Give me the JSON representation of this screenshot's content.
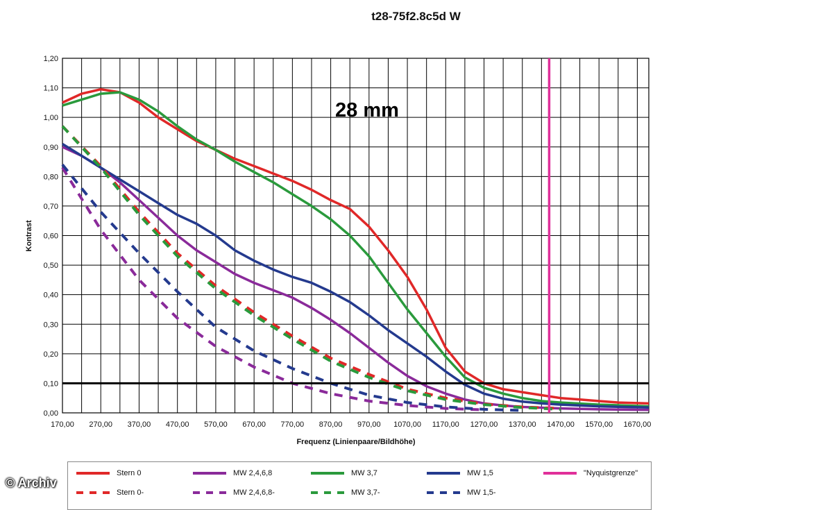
{
  "chart_data": {
    "type": "line",
    "title": "t28-75f2.8c5d W",
    "xlabel": "Frequenz (Linienpaare/Bildhöhe)",
    "ylabel": "Kontrast",
    "xlim": [
      170,
      1700
    ],
    "ylim": [
      0,
      1.2
    ],
    "xticks": [
      "170,00",
      "270,00",
      "370,00",
      "470,00",
      "570,00",
      "670,00",
      "770,00",
      "870,00",
      "970,00",
      "1070,00",
      "1170,00",
      "1270,00",
      "1370,00",
      "1470,00",
      "1570,00",
      "1670,00"
    ],
    "yticks": [
      "0,00",
      "0,10",
      "0,20",
      "0,30",
      "0,40",
      "0,50",
      "0,60",
      "0,70",
      "0,80",
      "0,90",
      "1,00",
      "1,10",
      "1,20"
    ],
    "grid": true,
    "legend_position": "bottom",
    "annotation": "28 mm",
    "reference_line": {
      "y": 0.1,
      "color": "#000000"
    },
    "nyquist": {
      "x": 1440,
      "color": "#e0309a"
    },
    "series": [
      {
        "name": "Stern 0",
        "color": "#e02828",
        "dashed": false,
        "points": [
          [
            170,
            1.05
          ],
          [
            220,
            1.08
          ],
          [
            270,
            1.095
          ],
          [
            320,
            1.085
          ],
          [
            370,
            1.05
          ],
          [
            420,
            1.0
          ],
          [
            470,
            0.96
          ],
          [
            520,
            0.92
          ],
          [
            570,
            0.89
          ],
          [
            620,
            0.86
          ],
          [
            670,
            0.835
          ],
          [
            720,
            0.81
          ],
          [
            770,
            0.785
          ],
          [
            820,
            0.755
          ],
          [
            870,
            0.72
          ],
          [
            920,
            0.69
          ],
          [
            970,
            0.63
          ],
          [
            1020,
            0.55
          ],
          [
            1070,
            0.46
          ],
          [
            1120,
            0.35
          ],
          [
            1170,
            0.22
          ],
          [
            1220,
            0.14
          ],
          [
            1270,
            0.1
          ],
          [
            1320,
            0.08
          ],
          [
            1370,
            0.07
          ],
          [
            1420,
            0.06
          ],
          [
            1470,
            0.05
          ],
          [
            1520,
            0.045
          ],
          [
            1570,
            0.04
          ],
          [
            1620,
            0.035
          ],
          [
            1700,
            0.032
          ]
        ]
      },
      {
        "name": "MW 2,4,6,8",
        "color": "#8a2a9a",
        "dashed": false,
        "points": [
          [
            170,
            0.9
          ],
          [
            220,
            0.87
          ],
          [
            270,
            0.83
          ],
          [
            320,
            0.78
          ],
          [
            370,
            0.72
          ],
          [
            420,
            0.66
          ],
          [
            470,
            0.6
          ],
          [
            520,
            0.55
          ],
          [
            570,
            0.51
          ],
          [
            620,
            0.47
          ],
          [
            670,
            0.44
          ],
          [
            720,
            0.415
          ],
          [
            770,
            0.39
          ],
          [
            820,
            0.355
          ],
          [
            870,
            0.315
          ],
          [
            920,
            0.27
          ],
          [
            970,
            0.22
          ],
          [
            1020,
            0.17
          ],
          [
            1070,
            0.125
          ],
          [
            1120,
            0.09
          ],
          [
            1170,
            0.065
          ],
          [
            1220,
            0.045
          ],
          [
            1270,
            0.032
          ],
          [
            1320,
            0.025
          ],
          [
            1370,
            0.02
          ],
          [
            1470,
            0.015
          ],
          [
            1570,
            0.012
          ],
          [
            1700,
            0.01
          ]
        ]
      },
      {
        "name": "MW 3,7",
        "color": "#2a9a3c",
        "dashed": false,
        "points": [
          [
            170,
            1.04
          ],
          [
            220,
            1.06
          ],
          [
            270,
            1.08
          ],
          [
            320,
            1.085
          ],
          [
            370,
            1.06
          ],
          [
            420,
            1.02
          ],
          [
            470,
            0.97
          ],
          [
            520,
            0.925
          ],
          [
            570,
            0.89
          ],
          [
            620,
            0.85
          ],
          [
            670,
            0.815
          ],
          [
            720,
            0.78
          ],
          [
            770,
            0.74
          ],
          [
            820,
            0.7
          ],
          [
            870,
            0.655
          ],
          [
            920,
            0.6
          ],
          [
            970,
            0.53
          ],
          [
            1020,
            0.44
          ],
          [
            1070,
            0.35
          ],
          [
            1120,
            0.27
          ],
          [
            1170,
            0.19
          ],
          [
            1220,
            0.12
          ],
          [
            1270,
            0.085
          ],
          [
            1320,
            0.065
          ],
          [
            1370,
            0.05
          ],
          [
            1420,
            0.04
          ],
          [
            1470,
            0.035
          ],
          [
            1570,
            0.028
          ],
          [
            1700,
            0.022
          ]
        ]
      },
      {
        "name": "MW 1,5",
        "color": "#243a8e",
        "dashed": false,
        "points": [
          [
            170,
            0.91
          ],
          [
            220,
            0.87
          ],
          [
            270,
            0.83
          ],
          [
            320,
            0.79
          ],
          [
            370,
            0.75
          ],
          [
            420,
            0.71
          ],
          [
            470,
            0.67
          ],
          [
            520,
            0.64
          ],
          [
            570,
            0.6
          ],
          [
            620,
            0.55
          ],
          [
            670,
            0.515
          ],
          [
            720,
            0.485
          ],
          [
            770,
            0.46
          ],
          [
            820,
            0.44
          ],
          [
            870,
            0.41
          ],
          [
            920,
            0.375
          ],
          [
            970,
            0.33
          ],
          [
            1020,
            0.28
          ],
          [
            1070,
            0.235
          ],
          [
            1120,
            0.19
          ],
          [
            1170,
            0.14
          ],
          [
            1220,
            0.095
          ],
          [
            1270,
            0.065
          ],
          [
            1320,
            0.048
          ],
          [
            1370,
            0.038
          ],
          [
            1420,
            0.032
          ],
          [
            1470,
            0.028
          ],
          [
            1570,
            0.022
          ],
          [
            1700,
            0.018
          ]
        ]
      },
      {
        "name": "Stern 0-",
        "color": "#e02828",
        "dashed": true,
        "points": [
          [
            170,
            0.97
          ],
          [
            270,
            0.835
          ],
          [
            370,
            0.68
          ],
          [
            470,
            0.54
          ],
          [
            570,
            0.43
          ],
          [
            670,
            0.34
          ],
          [
            770,
            0.26
          ],
          [
            870,
            0.185
          ],
          [
            970,
            0.13
          ],
          [
            1070,
            0.08
          ],
          [
            1170,
            0.05
          ],
          [
            1270,
            0.03
          ],
          [
            1370,
            0.02
          ],
          [
            1470,
            0.015
          ]
        ]
      },
      {
        "name": "MW 2,4,6,8-",
        "color": "#8a2a9a",
        "dashed": true,
        "points": [
          [
            170,
            0.83
          ],
          [
            270,
            0.62
          ],
          [
            370,
            0.45
          ],
          [
            470,
            0.32
          ],
          [
            570,
            0.225
          ],
          [
            670,
            0.155
          ],
          [
            770,
            0.1
          ],
          [
            870,
            0.065
          ],
          [
            970,
            0.04
          ],
          [
            1070,
            0.025
          ],
          [
            1170,
            0.015
          ],
          [
            1270,
            0.01
          ]
        ]
      },
      {
        "name": "MW 3,7-",
        "color": "#2a9a3c",
        "dashed": true,
        "points": [
          [
            170,
            0.97
          ],
          [
            270,
            0.83
          ],
          [
            370,
            0.67
          ],
          [
            470,
            0.53
          ],
          [
            570,
            0.42
          ],
          [
            670,
            0.33
          ],
          [
            770,
            0.25
          ],
          [
            870,
            0.175
          ],
          [
            970,
            0.12
          ],
          [
            1070,
            0.075
          ],
          [
            1170,
            0.045
          ],
          [
            1270,
            0.028
          ],
          [
            1370,
            0.018
          ],
          [
            1470,
            0.012
          ]
        ]
      },
      {
        "name": "MW 1,5-",
        "color": "#243a8e",
        "dashed": true,
        "points": [
          [
            170,
            0.84
          ],
          [
            270,
            0.68
          ],
          [
            370,
            0.54
          ],
          [
            470,
            0.41
          ],
          [
            570,
            0.29
          ],
          [
            670,
            0.21
          ],
          [
            770,
            0.15
          ],
          [
            870,
            0.1
          ],
          [
            970,
            0.06
          ],
          [
            1070,
            0.035
          ],
          [
            1170,
            0.02
          ],
          [
            1270,
            0.012
          ],
          [
            1370,
            0.008
          ]
        ]
      },
      {
        "name": "\"Nyquistgrenze\"",
        "color": "#e0309a",
        "dashed": false,
        "points": [
          [
            1440,
            0
          ],
          [
            1440,
            1.2
          ]
        ]
      }
    ]
  },
  "legend": [
    {
      "label": "Stern 0",
      "color": "#e02828",
      "dashed": false
    },
    {
      "label": "MW 2,4,6,8",
      "color": "#8a2a9a",
      "dashed": false
    },
    {
      "label": "MW 3,7",
      "color": "#2a9a3c",
      "dashed": false
    },
    {
      "label": "MW 1,5",
      "color": "#243a8e",
      "dashed": false
    },
    {
      "label": "\"Nyquistgrenze\"",
      "color": "#e0309a",
      "dashed": false
    },
    {
      "label": "Stern 0-",
      "color": "#e02828",
      "dashed": true
    },
    {
      "label": "MW 2,4,6,8-",
      "color": "#8a2a9a",
      "dashed": true
    },
    {
      "label": "MW 3,7-",
      "color": "#2a9a3c",
      "dashed": true
    },
    {
      "label": "MW 1,5-",
      "color": "#243a8e",
      "dashed": true
    }
  ],
  "watermark": "© Archiv"
}
